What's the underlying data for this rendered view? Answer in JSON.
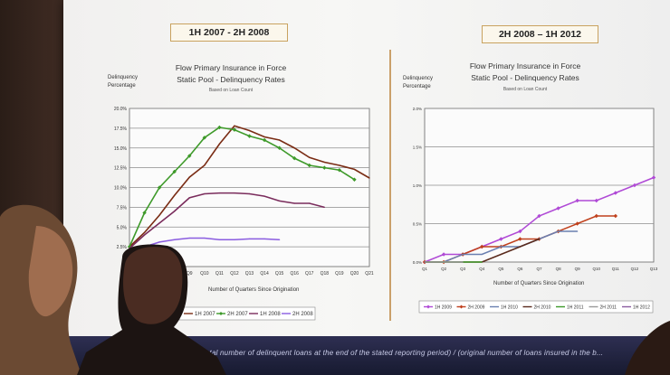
{
  "footer": {
    "text": "Rates = (total number of delinquent loans at the end of the stated reporting period) / (original number of loans insured in the b..."
  },
  "chart_data": [
    {
      "type": "line",
      "period": "1H 2007 - 2H 2008",
      "title_line1": "Flow Primary Insurance in Force",
      "title_line2": "Static Pool - Delinquency Rates",
      "subtitle": "Based on Loan Count",
      "ylabel_line1": "Delinquency",
      "ylabel_line2": "Percentage",
      "xlabel": "Number of Quarters Since Origination",
      "ylim": [
        0,
        20
      ],
      "y_ticks": [
        "2.5%",
        "5.0%",
        "7.5%",
        "10.0%",
        "12.5%",
        "15.0%",
        "17.5%",
        "20.0%"
      ],
      "y_tick_values": [
        2.5,
        5,
        7.5,
        10,
        12.5,
        15,
        17.5,
        20
      ],
      "x": [
        "Q5",
        "Q6",
        "Q7",
        "Q8",
        "Q9",
        "Q10",
        "Q11",
        "Q12",
        "Q13",
        "Q14",
        "Q15",
        "Q16",
        "Q17",
        "Q18",
        "Q19",
        "Q20",
        "Q21"
      ],
      "x_ticks_shown": [
        "Q6",
        "Q7",
        "Q8",
        "Q9",
        "Q10",
        "Q11",
        "Q12",
        "Q13",
        "Q14",
        "Q15",
        "Q16",
        "Q17",
        "Q18",
        "Q19",
        "Q20",
        "Q21"
      ],
      "grid": true,
      "series": [
        {
          "name": "1H 2007",
          "color": "#7a2c14",
          "marker": "none",
          "values": [
            2.5,
            4.3,
            6.5,
            9.0,
            11.3,
            12.8,
            15.5,
            17.8,
            17.2,
            16.4,
            16.0,
            15.0,
            13.8,
            13.2,
            12.8,
            12.3,
            11.2
          ]
        },
        {
          "name": "2H 2007",
          "color": "#3e9a2a",
          "marker": "diamond",
          "values": [
            2.5,
            6.8,
            10.0,
            12.0,
            14.0,
            16.3,
            17.6,
            17.3,
            16.5,
            16.0,
            15.0,
            13.7,
            12.8,
            12.5,
            12.2,
            11.0,
            null
          ]
        },
        {
          "name": "1H 2008",
          "color": "#7a2c5c",
          "marker": "none",
          "values": [
            2.3,
            4.0,
            5.5,
            7.0,
            8.7,
            9.2,
            9.3,
            9.3,
            9.2,
            8.9,
            8.3,
            8.0,
            8.0,
            7.5,
            null,
            null,
            null
          ]
        },
        {
          "name": "2H 2008",
          "color": "#8a5ce0",
          "marker": "none",
          "values": [
            1.5,
            2.5,
            3.1,
            3.4,
            3.6,
            3.6,
            3.4,
            3.4,
            3.5,
            3.5,
            3.4,
            null,
            null,
            null,
            null,
            null,
            null
          ]
        }
      ],
      "legend": [
        "1H 2007",
        "2H 2007",
        "1H 2008",
        "2H 2008"
      ],
      "legend_position": "bottom"
    },
    {
      "type": "line",
      "period": "2H 2008 – 1H 2012",
      "title_line1": "Flow Primary Insurance in Force",
      "title_line2": "Static Pool - Delinquency Rates",
      "subtitle": "Based on Loan Count",
      "ylabel_line1": "Delinquency",
      "ylabel_line2": "Percentage",
      "xlabel": "Number of Quarters Since Origination",
      "ylim": [
        0,
        2
      ],
      "y_ticks": [
        "0.0%",
        "0.5%",
        "1.0%",
        "1.5%",
        "2.0%"
      ],
      "y_tick_values": [
        0,
        0.5,
        1,
        1.5,
        2
      ],
      "x": [
        "Q1",
        "Q2",
        "Q3",
        "Q4",
        "Q5",
        "Q6",
        "Q7",
        "Q8",
        "Q9",
        "Q10",
        "Q11",
        "Q12",
        "Q13"
      ],
      "grid": true,
      "series": [
        {
          "name": "1H 2009",
          "color": "#b04ad6",
          "marker": "diamond",
          "values": [
            0.0,
            0.1,
            0.1,
            0.2,
            0.3,
            0.4,
            0.6,
            0.7,
            0.8,
            0.8,
            0.9,
            1.0,
            1.1
          ]
        },
        {
          "name": "2H 2009",
          "color": "#c0401c",
          "marker": "diamond",
          "values": [
            0.0,
            0.0,
            0.1,
            0.2,
            0.2,
            0.3,
            0.3,
            0.4,
            0.5,
            0.6,
            0.6,
            null,
            null
          ]
        },
        {
          "name": "1H 2010",
          "color": "#6a7fb0",
          "marker": "none",
          "values": [
            0.0,
            0.0,
            0.1,
            0.1,
            0.2,
            0.2,
            0.3,
            0.4,
            0.4,
            null,
            null,
            null,
            null
          ]
        },
        {
          "name": "2H 2010",
          "color": "#5a2a1c",
          "marker": "none",
          "values": [
            0.0,
            0.0,
            0.0,
            0.0,
            0.1,
            0.2,
            0.3,
            null,
            null,
            null,
            null,
            null,
            null
          ]
        },
        {
          "name": "1H 2011",
          "color": "#3e9a2a",
          "marker": "none",
          "values": [
            0.0,
            0.0,
            0.0,
            0.0,
            null,
            null,
            null,
            null,
            null,
            null,
            null,
            null,
            null
          ]
        },
        {
          "name": "2H 2011",
          "color": "#9a9a9a",
          "marker": "none",
          "values": [
            0.0,
            0.0,
            0.0,
            null,
            null,
            null,
            null,
            null,
            null,
            null,
            null,
            null,
            null
          ]
        },
        {
          "name": "1H 2012",
          "color": "#8a5ca0",
          "marker": "none",
          "values": [
            0.0,
            null,
            null,
            null,
            null,
            null,
            null,
            null,
            null,
            null,
            null,
            null,
            null
          ]
        }
      ],
      "legend": [
        "1H 2009",
        "2H 2009",
        "1H 2010",
        "2H 2010",
        "1H 2011",
        "2H 2011",
        "1H 2012"
      ],
      "legend_position": "bottom"
    }
  ]
}
